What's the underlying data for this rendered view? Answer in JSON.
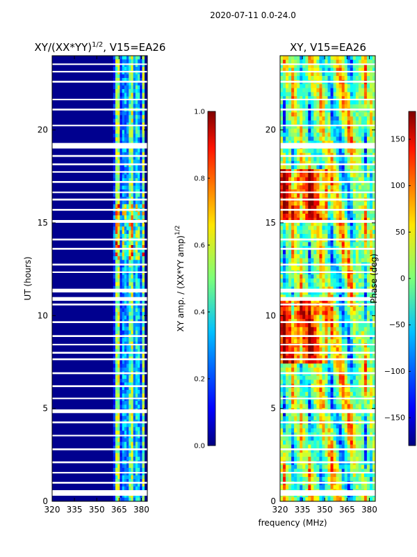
{
  "figure": {
    "suptitle": "2020-07-11 0.0-24.0",
    "xlabel": "frequency (MHz)"
  },
  "colors": {
    "cmap": [
      "#00007f",
      "#0000ff",
      "#0080ff",
      "#00e0ff",
      "#7cff79",
      "#ffe600",
      "#ff7000",
      "#ff1300",
      "#7f0000"
    ],
    "gap": "#ffffff",
    "low_amp": "#00008f"
  },
  "chart_data": [
    {
      "type": "heatmap",
      "id": "amp",
      "title_main": "XY/(XX*YY)",
      "title_sup": "1/2",
      "title_tail": ", V15=EA26",
      "xlabel": "frequency (MHz)",
      "ylabel": "UT (hours)",
      "xlim": [
        320,
        384
      ],
      "ylim": [
        0,
        24
      ],
      "xticks": [
        320,
        335,
        350,
        365,
        380
      ],
      "yticks": [
        0,
        5,
        10,
        15,
        20
      ],
      "active_band_mhz": [
        361,
        382
      ],
      "colorbar": {
        "label_main": "XY amp. / (XX*YY amp)",
        "label_sup": "1/2",
        "range": [
          0,
          1
        ],
        "ticks": [
          "0.0",
          "0.2",
          "0.4",
          "0.6",
          "0.8",
          "1.0"
        ]
      }
    },
    {
      "type": "heatmap",
      "id": "phase",
      "title": "XY, V15=EA26",
      "xlabel": "frequency (MHz)",
      "ylabel": "",
      "xlim": [
        320,
        384
      ],
      "ylim": [
        0,
        24
      ],
      "xticks": [
        320,
        335,
        350,
        365,
        380
      ],
      "yticks": [
        0,
        5,
        10,
        15,
        20
      ],
      "colorbar": {
        "label": "Phase (deg)",
        "range": [
          -180,
          180
        ],
        "ticks": [
          "150",
          "100",
          "50",
          "0",
          "−50",
          "−100",
          "−150"
        ],
        "tick_values": [
          150,
          100,
          50,
          0,
          -50,
          -100,
          -150
        ]
      }
    }
  ],
  "flagged_gaps_hours": [
    [
      0.3,
      0.6
    ],
    [
      0.95,
      1.05
    ],
    [
      1.5,
      1.58
    ],
    [
      2.05,
      2.15
    ],
    [
      2.75,
      2.85
    ],
    [
      3.5,
      3.58
    ],
    [
      4.2,
      4.3
    ],
    [
      4.75,
      4.95
    ],
    [
      5.5,
      5.58
    ],
    [
      6.15,
      6.25
    ],
    [
      6.85,
      6.95
    ],
    [
      7.6,
      7.7
    ],
    [
      7.95,
      8.05
    ],
    [
      8.4,
      8.48
    ],
    [
      8.85,
      8.95
    ],
    [
      9.6,
      9.7
    ],
    [
      10.55,
      10.65
    ],
    [
      10.8,
      11.0
    ],
    [
      11.25,
      11.45
    ],
    [
      12.3,
      12.38
    ],
    [
      12.7,
      12.8
    ],
    [
      13.55,
      13.65
    ],
    [
      14.05,
      14.15
    ],
    [
      15.0,
      15.15
    ],
    [
      15.65,
      15.75
    ],
    [
      16.2,
      16.3
    ],
    [
      16.6,
      16.68
    ],
    [
      17.15,
      17.25
    ],
    [
      17.7,
      17.78
    ],
    [
      18.1,
      18.2
    ],
    [
      18.55,
      18.65
    ],
    [
      19.0,
      19.3
    ],
    [
      20.2,
      20.28
    ],
    [
      21.05,
      21.15
    ],
    [
      21.6,
      21.68
    ],
    [
      22.55,
      22.65
    ],
    [
      23.1,
      23.18
    ],
    [
      23.5,
      23.58
    ]
  ]
}
